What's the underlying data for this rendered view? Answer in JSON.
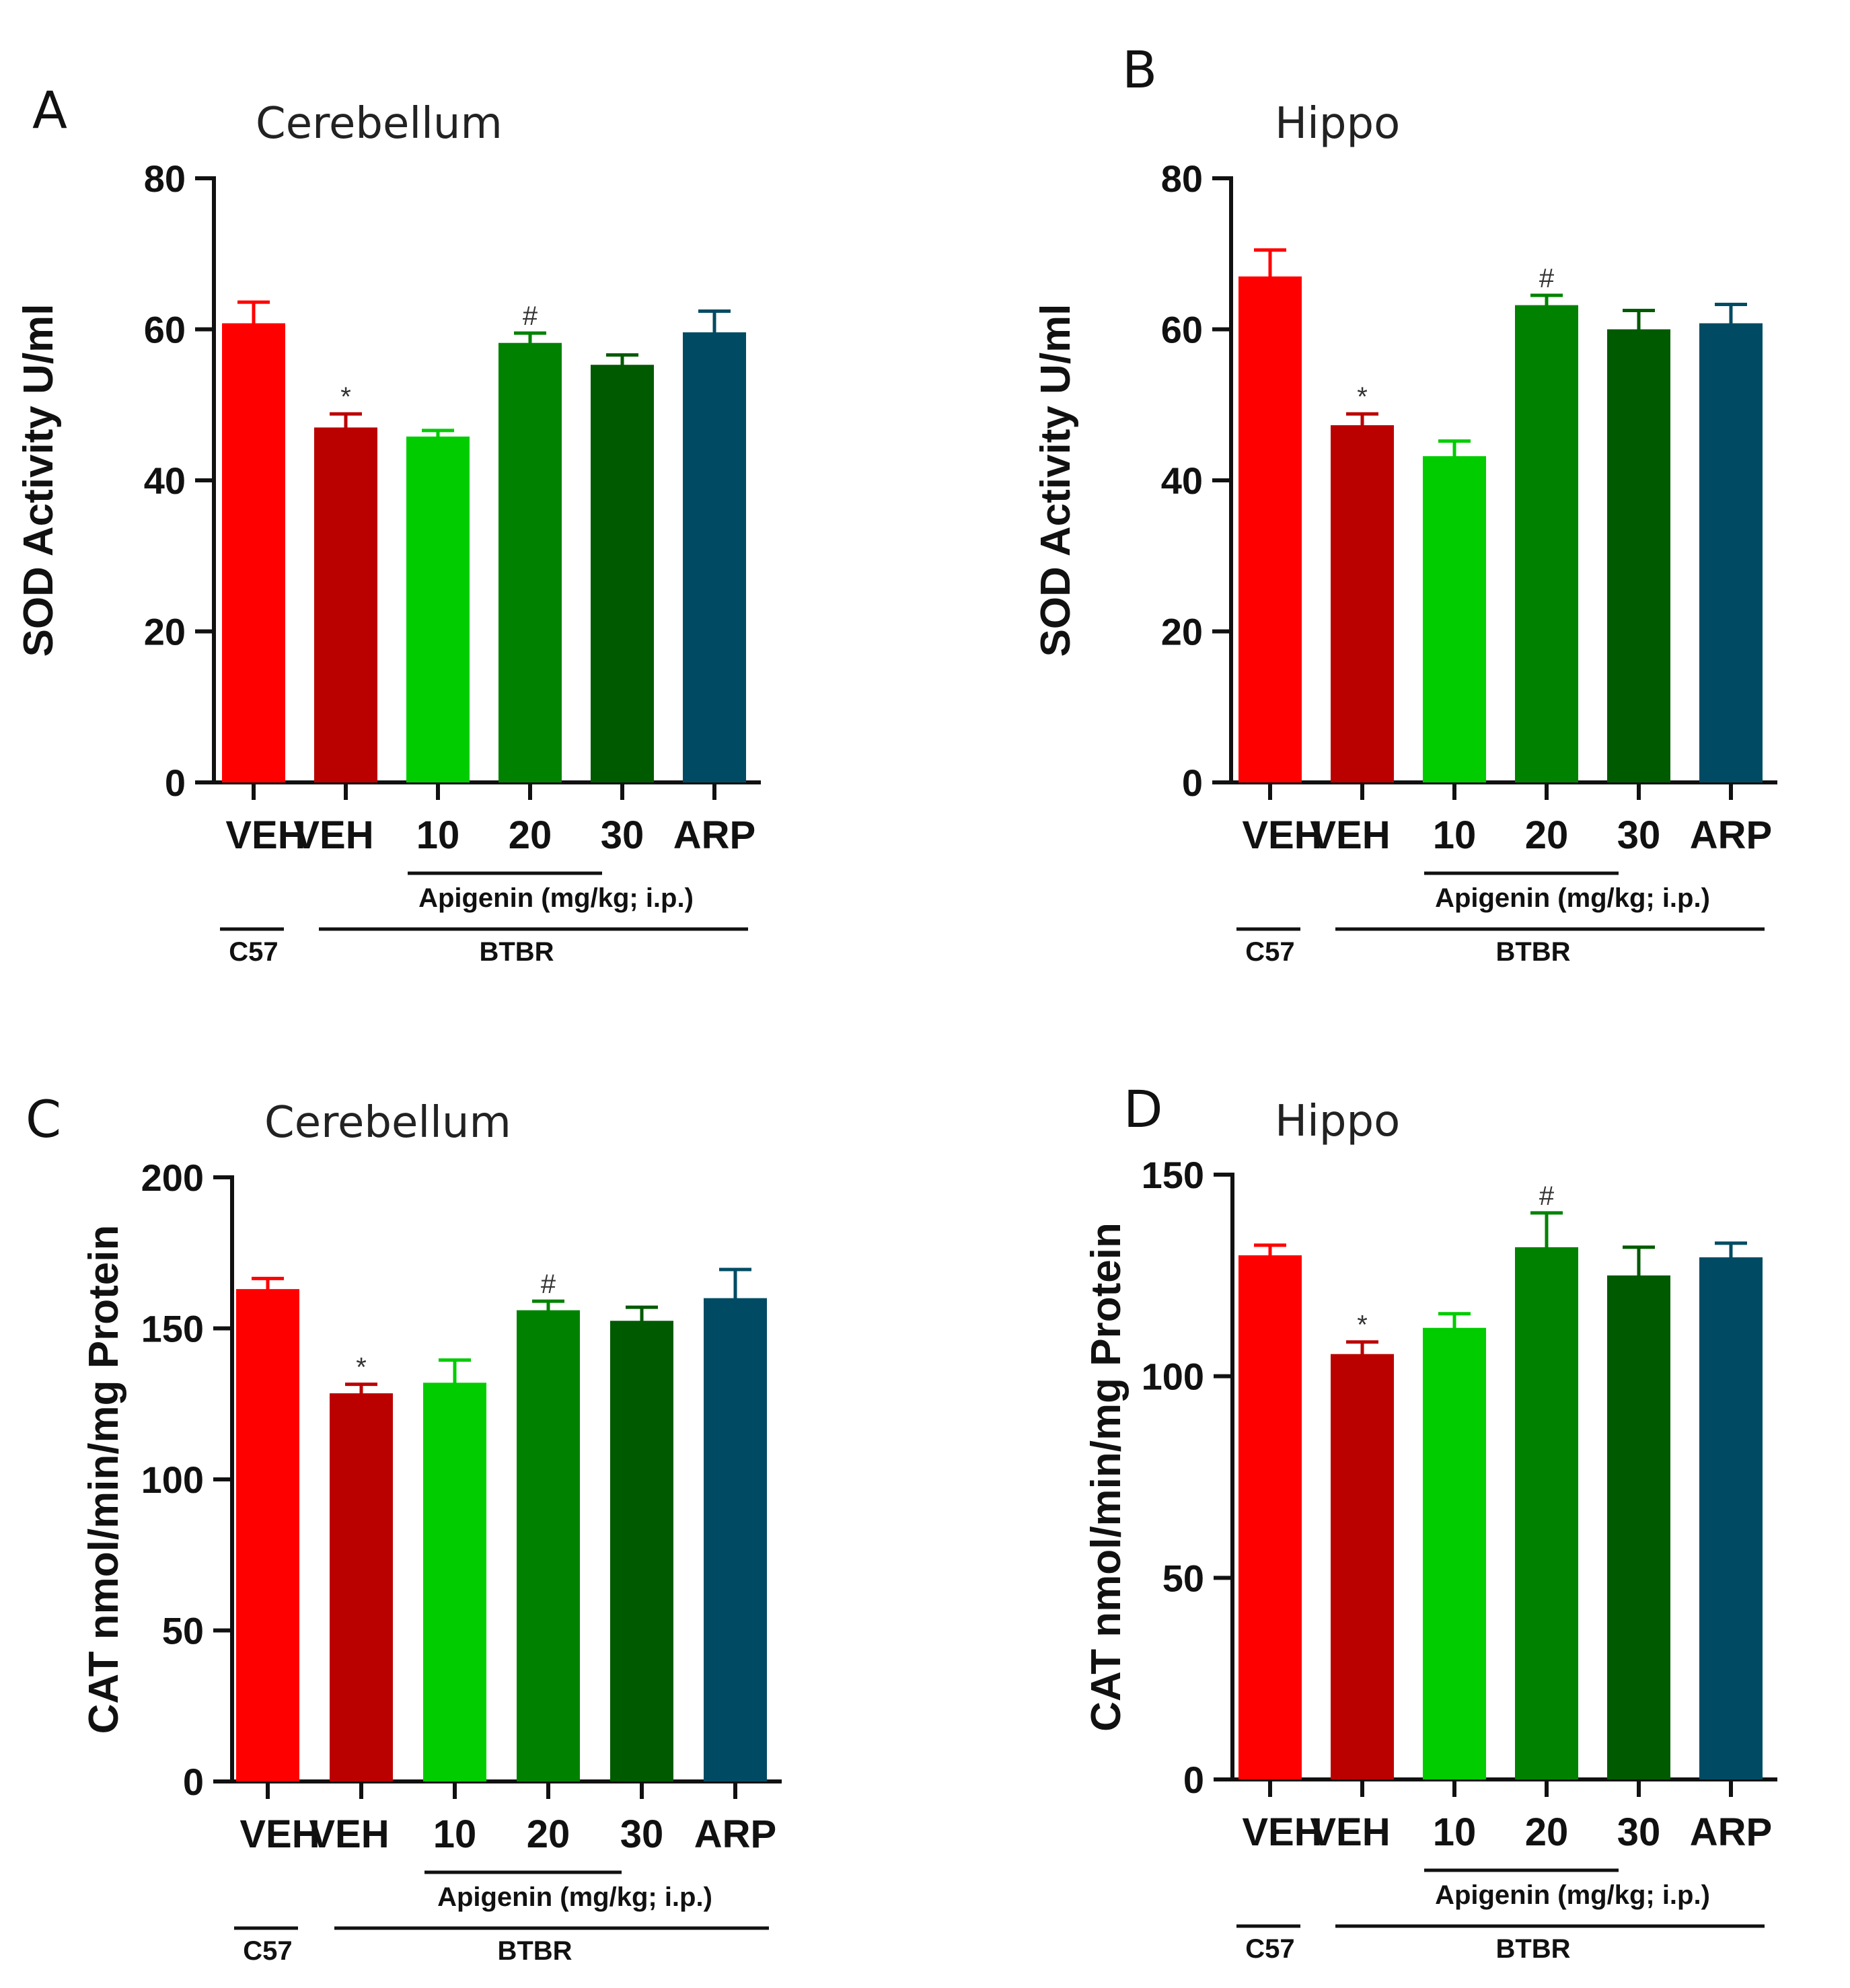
{
  "figure": {
    "categories": [
      "VEH",
      "VEH",
      "10",
      "20",
      "30",
      "ARP"
    ],
    "colors": [
      "#ff0000",
      "#bb0000",
      "#00cc00",
      "#008200",
      "#005a00",
      "#004b63"
    ],
    "group_labels": {
      "treatment": "Apigenin (mg/kg; i.p.)",
      "strain_control": "C57",
      "strain_model": "BTBR"
    }
  },
  "chart_data": [
    {
      "panel": "A",
      "type": "bar",
      "title": "Cerebellum",
      "ylabel": "SOD Activity U/ml",
      "xlabel": "",
      "ylim": [
        0,
        80
      ],
      "yticks": [
        0,
        20,
        40,
        60,
        80
      ],
      "categories": [
        "VEH",
        "VEH",
        "10",
        "20",
        "30",
        "ARP"
      ],
      "values": [
        60.8,
        47.0,
        45.8,
        58.2,
        55.3,
        59.6
      ],
      "errors": [
        2.8,
        1.8,
        0.8,
        1.3,
        1.3,
        2.8
      ],
      "annotations": [
        "",
        "*",
        "",
        "#",
        "",
        ""
      ]
    },
    {
      "panel": "B",
      "type": "bar",
      "title": "Hippo",
      "ylabel": "SOD Activity U/ml",
      "xlabel": "",
      "ylim": [
        0,
        80
      ],
      "yticks": [
        0,
        20,
        40,
        60,
        80
      ],
      "categories": [
        "VEH",
        "VEH",
        "10",
        "20",
        "30",
        "ARP"
      ],
      "values": [
        67.0,
        47.3,
        43.2,
        63.2,
        60.0,
        60.8
      ],
      "errors": [
        3.5,
        1.5,
        2.0,
        1.3,
        2.5,
        2.5
      ],
      "annotations": [
        "",
        "*",
        "",
        "#",
        "",
        ""
      ]
    },
    {
      "panel": "C",
      "type": "bar",
      "title": "Cerebellum",
      "ylabel": "CAT nmol/min/mg Protein",
      "xlabel": "",
      "ylim": [
        0,
        200
      ],
      "yticks": [
        0,
        50,
        100,
        150,
        200
      ],
      "categories": [
        "VEH",
        "VEH",
        "10",
        "20",
        "30",
        "ARP"
      ],
      "values": [
        163.0,
        128.5,
        132.0,
        156.0,
        152.5,
        160.0
      ],
      "errors": [
        3.5,
        3.0,
        7.5,
        3.0,
        4.5,
        9.5
      ],
      "annotations": [
        "",
        "*",
        "",
        "#",
        "",
        ""
      ]
    },
    {
      "panel": "D",
      "type": "bar",
      "title": "Hippo",
      "ylabel": "CAT nmol/min/mg Protein",
      "xlabel": "",
      "ylim": [
        0,
        150
      ],
      "yticks": [
        0,
        50,
        100,
        150
      ],
      "categories": [
        "VEH",
        "VEH",
        "10",
        "20",
        "30",
        "ARP"
      ],
      "values": [
        130.0,
        105.5,
        112.0,
        132.0,
        125.0,
        129.5
      ],
      "errors": [
        2.5,
        3.0,
        3.5,
        8.5,
        7.0,
        3.5
      ],
      "annotations": [
        "",
        "*",
        "",
        "#",
        "",
        ""
      ]
    }
  ]
}
